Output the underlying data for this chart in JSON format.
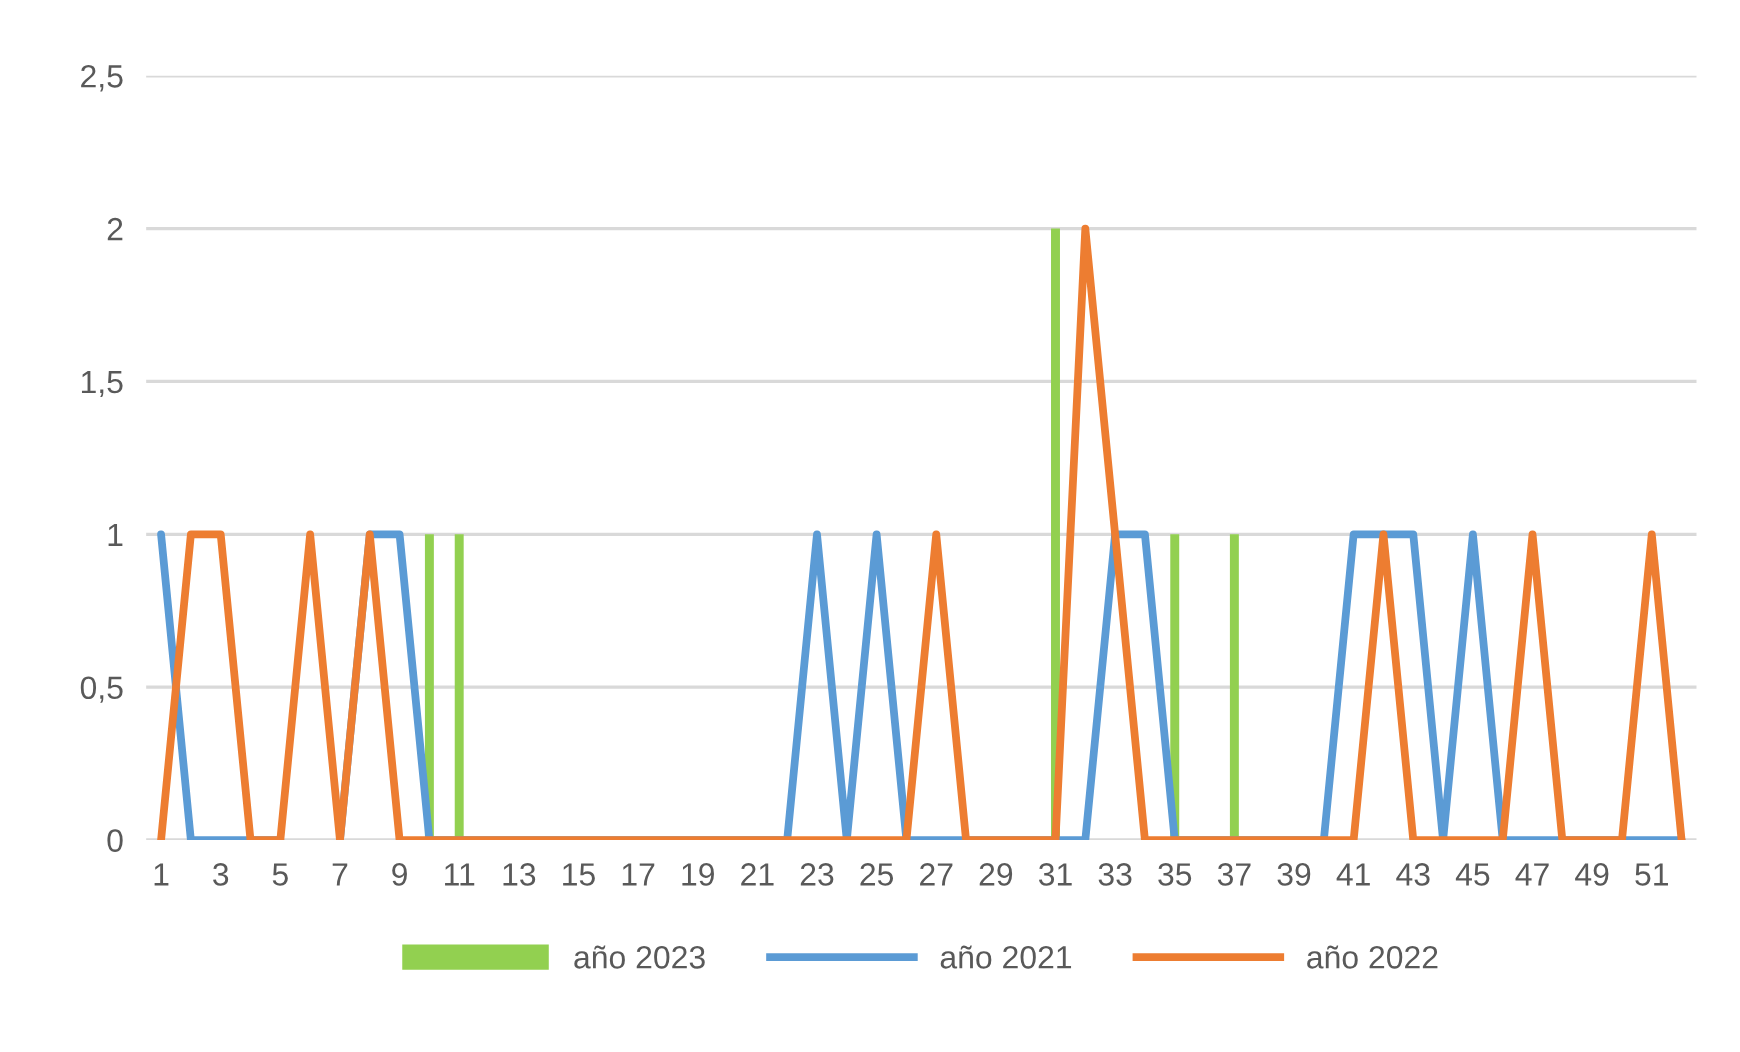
{
  "chart_data": {
    "type": "line",
    "categories": [
      "1",
      null,
      "3",
      null,
      "5",
      null,
      "7",
      null,
      "9",
      null,
      "11",
      null,
      "13",
      null,
      "15",
      null,
      "17",
      null,
      "19",
      null,
      "21",
      null,
      "23",
      null,
      "25",
      null,
      "27",
      null,
      "29",
      null,
      "31",
      null,
      "33",
      null,
      "35",
      null,
      "37",
      null,
      "39",
      null,
      "41",
      null,
      "43",
      null,
      "45",
      null,
      "47",
      null,
      "49",
      null,
      "51",
      null
    ],
    "series": [
      {
        "name": "año 2023",
        "type": "bar",
        "color": "#92d050",
        "values": [
          null,
          null,
          null,
          null,
          null,
          null,
          null,
          null,
          null,
          1,
          1,
          null,
          null,
          null,
          null,
          null,
          null,
          null,
          null,
          null,
          null,
          null,
          null,
          null,
          null,
          null,
          null,
          null,
          null,
          null,
          2,
          null,
          null,
          null,
          1,
          null,
          1,
          null,
          null,
          null,
          null,
          null,
          null,
          null,
          null,
          null,
          null,
          null,
          null,
          null,
          null,
          null
        ]
      },
      {
        "name": "año 2021",
        "color": "#5b9bd5",
        "values": [
          1,
          0,
          0,
          0,
          0,
          null,
          0,
          1,
          1,
          0,
          0,
          0,
          0,
          0,
          0,
          0,
          0,
          0,
          0,
          0,
          0,
          0,
          1,
          0,
          1,
          0,
          0,
          0,
          0,
          0,
          0,
          0,
          1,
          1,
          0,
          0,
          0,
          0,
          0,
          0,
          1,
          1,
          1,
          0,
          1,
          0,
          0,
          0,
          0,
          0,
          0,
          0
        ]
      },
      {
        "name": "año 2022",
        "color": "#ed7d31",
        "values": [
          0,
          1,
          1,
          0,
          0,
          1,
          0,
          1,
          0,
          0,
          0,
          0,
          0,
          0,
          0,
          0,
          0,
          0,
          0,
          0,
          0,
          0,
          0,
          0,
          0,
          0,
          1,
          0,
          0,
          0,
          0,
          2,
          1,
          0,
          0,
          0,
          0,
          0,
          0,
          0,
          0,
          1,
          0,
          0,
          0,
          0,
          1,
          0,
          0,
          0,
          1,
          0
        ]
      }
    ],
    "ylim": [
      0,
      2.5
    ],
    "yticks": [
      0,
      {
        "value": 0.5,
        "label": "0,5"
      },
      1,
      {
        "value": 1.5,
        "label": "1,5"
      },
      2,
      {
        "value": 2.5,
        "label": "2,5"
      }
    ],
    "grid": "y",
    "legend": "bottom",
    "marker": "none",
    "line_style": "solid"
  }
}
